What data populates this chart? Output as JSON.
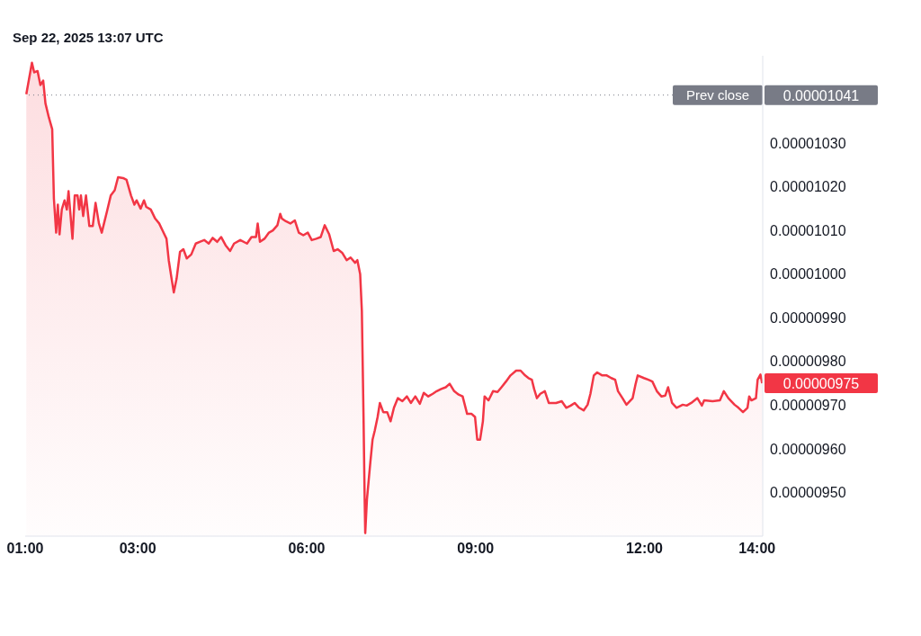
{
  "chart_data": {
    "type": "area",
    "color": "#f23645",
    "line_style": "solid",
    "annotations": [
      "Sep 22, 2025 13:07 UTC",
      "0.00001041",
      "0.00000975"
    ],
    "x": [
      1.02,
      1.12,
      1.16,
      1.22,
      1.27,
      1.32,
      1.36,
      1.42,
      1.48,
      1.51,
      1.55,
      1.58,
      1.61,
      1.65,
      1.7,
      1.74,
      1.77,
      1.84,
      1.88,
      1.93,
      1.96,
      1.99,
      2.03,
      2.08,
      2.14,
      2.2,
      2.25,
      2.31,
      2.36,
      2.4,
      2.45,
      2.52,
      2.59,
      2.65,
      2.74,
      2.8,
      2.88,
      2.94,
      2.98,
      3.05,
      3.11,
      3.15,
      3.23,
      3.31,
      3.38,
      3.44,
      3.51,
      3.55,
      3.6,
      3.64,
      3.69,
      3.75,
      3.81,
      3.87,
      3.95,
      4.03,
      4.1,
      4.18,
      4.26,
      4.33,
      4.41,
      4.48,
      4.56,
      4.64,
      4.71,
      4.82,
      4.94,
      5.02,
      5.1,
      5.13,
      5.17,
      5.25,
      5.33,
      5.4,
      5.48,
      5.53,
      5.56,
      5.63,
      5.71,
      5.79,
      5.86,
      5.94,
      6.02,
      6.09,
      6.17,
      6.25,
      6.32,
      6.4,
      6.48,
      6.55,
      6.63,
      6.71,
      6.78,
      6.86,
      6.9,
      6.95,
      6.98,
      7.01,
      7.03,
      7.04,
      7.07,
      7.1,
      7.13,
      7.17,
      7.21,
      7.26,
      7.3,
      7.36,
      7.43,
      7.49,
      7.55,
      7.62,
      7.7,
      7.78,
      7.85,
      7.93,
      8.01,
      8.08,
      8.16,
      8.24,
      8.31,
      8.39,
      8.47,
      8.54,
      8.62,
      8.7,
      8.77,
      8.85,
      8.93,
      8.99,
      9.03,
      9.08,
      9.13,
      9.16,
      9.23,
      9.31,
      9.39,
      9.46,
      9.54,
      9.62,
      9.72,
      9.8,
      9.88,
      9.94,
      10.0,
      10.04,
      10.09,
      10.15,
      10.23,
      10.3,
      10.43,
      10.53,
      10.61,
      10.69,
      10.76,
      10.84,
      10.92,
      10.99,
      11.04,
      11.1,
      11.16,
      11.25,
      11.33,
      11.41,
      11.48,
      11.53,
      11.61,
      11.68,
      11.79,
      11.84,
      11.88,
      11.99,
      12.07,
      12.14,
      12.22,
      12.3,
      12.37,
      12.42,
      12.49,
      12.57,
      12.68,
      12.75,
      12.83,
      12.94,
      13.02,
      13.06,
      13.21,
      13.34,
      13.41,
      13.49,
      13.6,
      13.67,
      13.75,
      13.83,
      13.86,
      13.9,
      13.98,
      14.01,
      14.06,
      14.09
    ],
    "values": [
      1.0412e-05,
      1.0484e-05,
      1.0462e-05,
      1.0465e-05,
      1.0433e-05,
      1.0443e-05,
      1.0391e-05,
      1.0359e-05,
      1.0332e-05,
      1.0173e-05,
      1.0095e-05,
      1.0159e-05,
      1.0091e-05,
      1.0148e-05,
      1.0169e-05,
      1.0148e-05,
      1.019e-05,
      1.0081e-05,
      1.018e-05,
      1.018e-05,
      1.0148e-05,
      1.018e-05,
      1.0133e-05,
      1.018e-05,
      1.011e-05,
      1.011e-05,
      1.0163e-05,
      1.0116e-05,
      1.0095e-05,
      1.0116e-05,
      1.0142e-05,
      1.018e-05,
      1.0192e-05,
      1.0222e-05,
      1.022e-05,
      1.0216e-05,
      1.018e-05,
      1.0159e-05,
      1.0169e-05,
      1.015e-05,
      1.0169e-05,
      1.0154e-05,
      1.0148e-05,
      1.0127e-05,
      1.0116e-05,
      1.01e-05,
      1.0081e-05,
      1.0032e-05,
      9.99e-06,
      9.958e-06,
      9.99e-06,
      1.0051e-05,
      1.0057e-05,
      1.0036e-05,
      1.0045e-05,
      1.007e-05,
      1.0074e-05,
      1.0078e-05,
      1.007e-05,
      1.0083e-05,
      1.0074e-05,
      1.0085e-05,
      1.0066e-05,
      1.0053e-05,
      1.007e-05,
      1.0078e-05,
      1.007e-05,
      1.0085e-05,
      1.0085e-05,
      1.0116e-05,
      1.0074e-05,
      1.0081e-05,
      1.0095e-05,
      1.01e-05,
      1.0112e-05,
      1.0138e-05,
      1.0127e-05,
      1.0121e-05,
      1.0116e-05,
      1.0123e-05,
      1.0095e-05,
      1.0089e-05,
      1.0095e-05,
      1.0078e-05,
      1.0081e-05,
      1.0085e-05,
      1.0112e-05,
      1.0091e-05,
      1.0053e-05,
      1.0057e-05,
      1.0049e-05,
      1.0032e-05,
      1.0038e-05,
      1.0026e-05,
      1.0032e-05,
      1e-05,
      9.916e-06,
      9.673e-06,
      9.483e-06,
      9.407e-06,
      9.483e-06,
      9.526e-06,
      9.568e-06,
      9.621e-06,
      9.642e-06,
      9.673e-06,
      9.705e-06,
      9.684e-06,
      9.684e-06,
      9.663e-06,
      9.694e-06,
      9.716e-06,
      9.709e-06,
      9.72e-06,
      9.705e-06,
      9.72e-06,
      9.703e-06,
      9.728e-06,
      9.72e-06,
      9.726e-06,
      9.732e-06,
      9.737e-06,
      9.741e-06,
      9.749e-06,
      9.732e-06,
      9.724e-06,
      9.72e-06,
      9.68e-06,
      9.68e-06,
      9.673e-06,
      9.621e-06,
      9.621e-06,
      9.663e-06,
      9.72e-06,
      9.711e-06,
      9.732e-06,
      9.73e-06,
      9.741e-06,
      9.754e-06,
      9.768e-06,
      9.779e-06,
      9.779e-06,
      9.768e-06,
      9.762e-06,
      9.758e-06,
      9.737e-06,
      9.716e-06,
      9.726e-06,
      9.732e-06,
      9.705e-06,
      9.705e-06,
      9.709e-06,
      9.694e-06,
      9.699e-06,
      9.705e-06,
      9.694e-06,
      9.688e-06,
      9.701e-06,
      9.726e-06,
      9.768e-06,
      9.775e-06,
      9.768e-06,
      9.768e-06,
      9.762e-06,
      9.758e-06,
      9.732e-06,
      9.716e-06,
      9.701e-06,
      9.716e-06,
      9.747e-06,
      9.768e-06,
      9.762e-06,
      9.758e-06,
      9.754e-06,
      9.732e-06,
      9.72e-06,
      9.722e-06,
      9.741e-06,
      9.705e-06,
      9.694e-06,
      9.701e-06,
      9.699e-06,
      9.705e-06,
      9.716e-06,
      9.699e-06,
      9.711e-06,
      9.709e-06,
      9.711e-06,
      9.732e-06,
      9.716e-06,
      9.701e-06,
      9.694e-06,
      9.684e-06,
      9.694e-06,
      9.72e-06,
      9.711e-06,
      9.716e-06,
      9.758e-06,
      9.77e-06,
      9.75e-06
    ],
    "xlim": [
      1.0,
      14.1
    ],
    "xticks": [
      {
        "value": 1,
        "label": "01:00"
      },
      {
        "value": 3,
        "label": "03:00"
      },
      {
        "value": 6,
        "label": "06:00"
      },
      {
        "value": 9,
        "label": "09:00"
      },
      {
        "value": 12,
        "label": "12:00"
      },
      {
        "value": 14,
        "label": "14:00"
      }
    ],
    "ylim": [
      9.4e-06,
      1.05e-05
    ],
    "yticks": [
      {
        "value": 9.5e-06,
        "label": "0.00000950"
      },
      {
        "value": 9.6e-06,
        "label": "0.00000960"
      },
      {
        "value": 9.7e-06,
        "label": "0.00000970"
      },
      {
        "value": 9.8e-06,
        "label": "0.00000980"
      },
      {
        "value": 9.9e-06,
        "label": "0.00000990"
      },
      {
        "value": 1e-05,
        "label": "0.00001000"
      },
      {
        "value": 1.01e-05,
        "label": "0.00001010"
      },
      {
        "value": 1.02e-05,
        "label": "0.00001020"
      },
      {
        "value": 1.03e-05,
        "label": "0.00001030"
      }
    ],
    "ref_lines": [
      {
        "axis": "y",
        "value": 1.041e-05,
        "label": "Prev close",
        "color": "#787b86",
        "line_style": "dotted"
      }
    ]
  }
}
